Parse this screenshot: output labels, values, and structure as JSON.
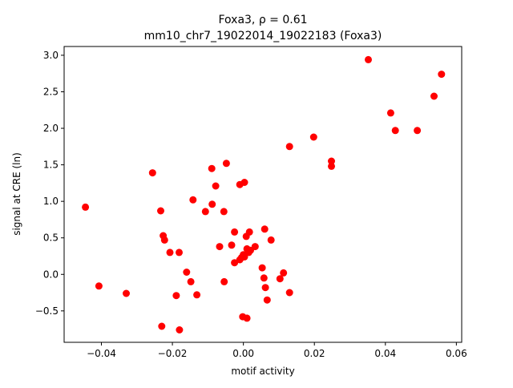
{
  "chart_data": {
    "type": "scatter",
    "title_line1": "Foxa3, ρ = 0.61",
    "title_line2": "mm10_chr7_19022014_19022183 (Foxa3)",
    "xlabel": "motif activity",
    "ylabel": "signal at CRE (ln)",
    "xlim": [
      -0.0505,
      0.0615
    ],
    "ylim": [
      -0.93,
      3.12
    ],
    "xticks": [
      -0.04,
      -0.02,
      0.0,
      0.02,
      0.04,
      0.06
    ],
    "xtick_labels": [
      "−0.04",
      "−0.02",
      "0.00",
      "0.02",
      "0.04",
      "0.06"
    ],
    "yticks": [
      -0.5,
      0.0,
      0.5,
      1.0,
      1.5,
      2.0,
      2.5,
      3.0
    ],
    "ytick_labels": [
      "−0.5",
      "0.0",
      "0.5",
      "1.0",
      "1.5",
      "2.0",
      "2.5",
      "3.0"
    ],
    "grid": false,
    "marker_color": "#ff0000",
    "points": [
      {
        "x": -0.0445,
        "y": 0.92
      },
      {
        "x": -0.0407,
        "y": -0.16
      },
      {
        "x": -0.033,
        "y": -0.26
      },
      {
        "x": -0.0256,
        "y": 1.39
      },
      {
        "x": -0.0233,
        "y": 0.87
      },
      {
        "x": -0.0226,
        "y": 0.53
      },
      {
        "x": -0.0222,
        "y": 0.47
      },
      {
        "x": -0.023,
        "y": -0.71
      },
      {
        "x": -0.0207,
        "y": 0.3
      },
      {
        "x": -0.0189,
        "y": -0.29
      },
      {
        "x": -0.0181,
        "y": 0.3
      },
      {
        "x": -0.018,
        "y": -0.76
      },
      {
        "x": -0.016,
        "y": 0.03
      },
      {
        "x": -0.0148,
        "y": -0.1
      },
      {
        "x": -0.0142,
        "y": 1.02
      },
      {
        "x": -0.0131,
        "y": -0.28
      },
      {
        "x": -0.0107,
        "y": 0.86
      },
      {
        "x": -0.0089,
        "y": 1.45
      },
      {
        "x": -0.0088,
        "y": 0.96
      },
      {
        "x": -0.0078,
        "y": 1.21
      },
      {
        "x": -0.0067,
        "y": 0.38
      },
      {
        "x": -0.0055,
        "y": 0.86
      },
      {
        "x": -0.0054,
        "y": -0.1
      },
      {
        "x": -0.0048,
        "y": 1.52
      },
      {
        "x": -0.0033,
        "y": 0.4
      },
      {
        "x": -0.0025,
        "y": 0.58
      },
      {
        "x": -0.0025,
        "y": 0.16
      },
      {
        "x": -0.001,
        "y": 0.2
      },
      {
        "x": -0.001,
        "y": 1.23
      },
      {
        "x": -0.0005,
        "y": 0.23
      },
      {
        "x": 0.0,
        "y": 0.27
      },
      {
        "x": -0.0002,
        "y": -0.58
      },
      {
        "x": 0.0003,
        "y": 0.24
      },
      {
        "x": 0.0003,
        "y": 1.26
      },
      {
        "x": 0.0008,
        "y": 0.52
      },
      {
        "x": 0.001,
        "y": 0.35
      },
      {
        "x": 0.001,
        "y": -0.6
      },
      {
        "x": 0.0015,
        "y": 0.3
      },
      {
        "x": 0.0017,
        "y": 0.58
      },
      {
        "x": 0.002,
        "y": 0.33
      },
      {
        "x": 0.0033,
        "y": 0.38
      },
      {
        "x": 0.0053,
        "y": 0.09
      },
      {
        "x": 0.0058,
        "y": -0.05
      },
      {
        "x": 0.006,
        "y": 0.62
      },
      {
        "x": 0.0062,
        "y": -0.18
      },
      {
        "x": 0.0067,
        "y": -0.35
      },
      {
        "x": 0.0078,
        "y": 0.47
      },
      {
        "x": 0.0103,
        "y": -0.06
      },
      {
        "x": 0.0113,
        "y": 0.02
      },
      {
        "x": 0.013,
        "y": 1.75
      },
      {
        "x": 0.013,
        "y": -0.25
      },
      {
        "x": 0.0198,
        "y": 1.88
      },
      {
        "x": 0.0248,
        "y": 1.55
      },
      {
        "x": 0.0248,
        "y": 1.48
      },
      {
        "x": 0.0352,
        "y": 2.94
      },
      {
        "x": 0.0415,
        "y": 2.21
      },
      {
        "x": 0.0428,
        "y": 1.97
      },
      {
        "x": 0.049,
        "y": 1.97
      },
      {
        "x": 0.0537,
        "y": 2.44
      },
      {
        "x": 0.0558,
        "y": 2.74
      }
    ]
  }
}
